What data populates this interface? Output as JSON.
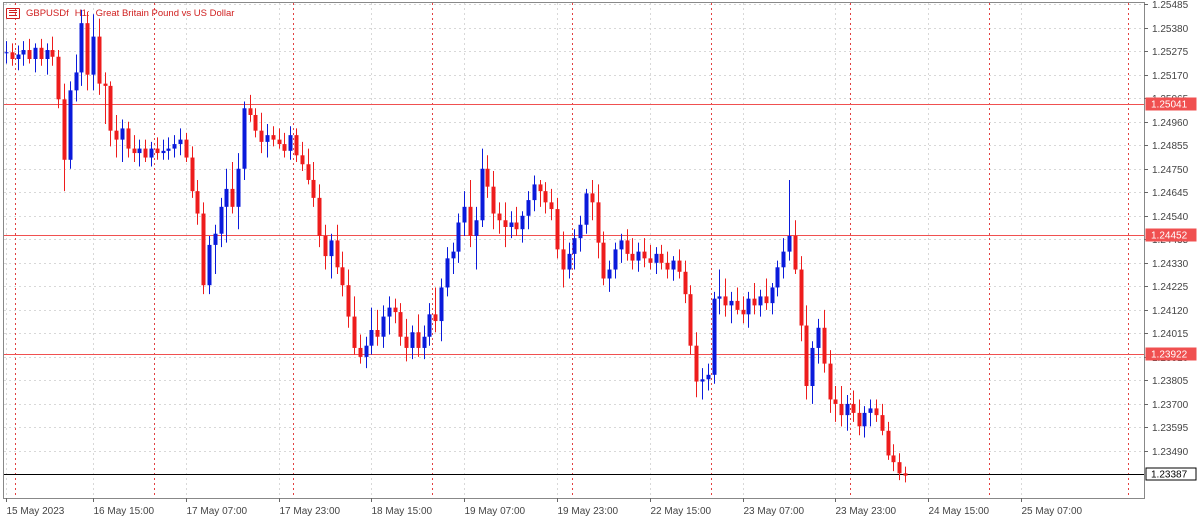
{
  "header": {
    "symbol": "GBPUSDf",
    "timeframe": "H1:",
    "description": "Great Britain Pound vs US Dollar",
    "icon": "chart-window-icon"
  },
  "colors": {
    "bull": "#0a1adb",
    "bear": "#ee1c1c",
    "grid": "#d8d8d8",
    "separator": "#e24040",
    "level_line": "#f05050",
    "current_line": "#000000",
    "text": "#444444"
  },
  "chart_data": {
    "type": "candlestick",
    "y_range": [
      1.2328,
      1.2549
    ],
    "y_ticks": [
      "1.25485",
      "1.25380",
      "1.25275",
      "1.25170",
      "1.25065",
      "1.24960",
      "1.24855",
      "1.24750",
      "1.24645",
      "1.24540",
      "1.24435",
      "1.24330",
      "1.24225",
      "1.24120",
      "1.24015",
      "1.23910",
      "1.23805",
      "1.23700",
      "1.23595",
      "1.23490"
    ],
    "x_labels": [
      {
        "label": "15 May 2023",
        "index": 0
      },
      {
        "label": "16 May 15:00",
        "index": 15
      },
      {
        "label": "17 May 07:00",
        "index": 31
      },
      {
        "label": "17 May 23:00",
        "index": 47
      },
      {
        "label": "18 May 15:00",
        "index": 63
      },
      {
        "label": "19 May 07:00",
        "index": 79
      },
      {
        "label": "19 May 23:00",
        "index": 95
      },
      {
        "label": "22 May 15:00",
        "index": 111
      },
      {
        "label": "23 May 07:00",
        "index": 127
      },
      {
        "label": "23 May 23:00",
        "index": 143
      },
      {
        "label": "24 May 15:00",
        "index": 159
      },
      {
        "label": "25 May 07:00",
        "index": 175
      }
    ],
    "day_separators": [
      2,
      26,
      50,
      74,
      98,
      122,
      146,
      170,
      194
    ],
    "horizontal_levels": [
      1.25041,
      1.24452,
      1.23922
    ],
    "level_labels": [
      "1.25041",
      "1.24452",
      "1.23922"
    ],
    "current_price": 1.23387,
    "current_price_label": "1.23387",
    "candles": [
      [
        1.2527,
        1.2532,
        1.2522,
        1.2527
      ],
      [
        1.2527,
        1.2531,
        1.2521,
        1.2524
      ],
      [
        1.2524,
        1.253,
        1.2519,
        1.2526
      ],
      [
        1.2526,
        1.2532,
        1.2521,
        1.2528
      ],
      [
        1.2528,
        1.2533,
        1.2522,
        1.2524
      ],
      [
        1.2524,
        1.2531,
        1.2518,
        1.2529
      ],
      [
        1.2529,
        1.2533,
        1.2521,
        1.2524
      ],
      [
        1.2524,
        1.2531,
        1.2517,
        1.2528
      ],
      [
        1.2528,
        1.2534,
        1.2521,
        1.2525
      ],
      [
        1.2525,
        1.2528,
        1.2502,
        1.2506
      ],
      [
        1.2506,
        1.2513,
        1.2465,
        1.2479
      ],
      [
        1.2479,
        1.2514,
        1.2475,
        1.251
      ],
      [
        1.251,
        1.2526,
        1.2505,
        1.2518
      ],
      [
        1.2518,
        1.2546,
        1.2512,
        1.254
      ],
      [
        1.254,
        1.2545,
        1.251,
        1.2517
      ],
      [
        1.2517,
        1.2544,
        1.251,
        1.2534
      ],
      [
        1.2534,
        1.2542,
        1.2508,
        1.2513
      ],
      [
        1.2513,
        1.2518,
        1.2495,
        1.2512
      ],
      [
        1.2512,
        1.2514,
        1.2485,
        1.2492
      ],
      [
        1.2492,
        1.2499,
        1.248,
        1.2488
      ],
      [
        1.2488,
        1.2497,
        1.2478,
        1.2493
      ],
      [
        1.2493,
        1.2496,
        1.248,
        1.2484
      ],
      [
        1.2484,
        1.249,
        1.2478,
        1.2482
      ],
      [
        1.2482,
        1.2488,
        1.2476,
        1.2484
      ],
      [
        1.2484,
        1.2488,
        1.2478,
        1.248
      ],
      [
        1.248,
        1.2487,
        1.2476,
        1.2484
      ],
      [
        1.2484,
        1.2489,
        1.2479,
        1.2482
      ],
      [
        1.2482,
        1.2488,
        1.2479,
        1.2483
      ],
      [
        1.2483,
        1.2489,
        1.2479,
        1.2484
      ],
      [
        1.2484,
        1.249,
        1.248,
        1.2486
      ],
      [
        1.2486,
        1.2493,
        1.2481,
        1.2488
      ],
      [
        1.2488,
        1.2491,
        1.2478,
        1.248
      ],
      [
        1.248,
        1.2485,
        1.2462,
        1.2465
      ],
      [
        1.2465,
        1.247,
        1.245,
        1.2455
      ],
      [
        1.2455,
        1.246,
        1.2419,
        1.2423
      ],
      [
        1.2423,
        1.2445,
        1.2419,
        1.2441
      ],
      [
        1.2441,
        1.245,
        1.2428,
        1.2446
      ],
      [
        1.2446,
        1.2462,
        1.244,
        1.2458
      ],
      [
        1.2458,
        1.2475,
        1.2442,
        1.2466
      ],
      [
        1.2466,
        1.2478,
        1.2455,
        1.2458
      ],
      [
        1.2458,
        1.2482,
        1.2448,
        1.2475
      ],
      [
        1.2475,
        1.2505,
        1.247,
        1.2502
      ],
      [
        1.2502,
        1.2508,
        1.2496,
        1.2499
      ],
      [
        1.2499,
        1.2502,
        1.2489,
        1.2492
      ],
      [
        1.2492,
        1.25,
        1.2482,
        1.2487
      ],
      [
        1.2487,
        1.2495,
        1.248,
        1.249
      ],
      [
        1.249,
        1.2494,
        1.2485,
        1.2488
      ],
      [
        1.2488,
        1.2493,
        1.2484,
        1.2486
      ],
      [
        1.2486,
        1.2491,
        1.248,
        1.2483
      ],
      [
        1.2483,
        1.2494,
        1.2479,
        1.249
      ],
      [
        1.249,
        1.2493,
        1.2478,
        1.2481
      ],
      [
        1.2481,
        1.2487,
        1.2474,
        1.2477
      ],
      [
        1.2477,
        1.2484,
        1.2468,
        1.247
      ],
      [
        1.247,
        1.2478,
        1.2458,
        1.2462
      ],
      [
        1.2462,
        1.2468,
        1.244,
        1.2445
      ],
      [
        1.2445,
        1.245,
        1.243,
        1.2436
      ],
      [
        1.2436,
        1.2446,
        1.2426,
        1.2443
      ],
      [
        1.2443,
        1.245,
        1.2428,
        1.2431
      ],
      [
        1.2431,
        1.2438,
        1.2418,
        1.2423
      ],
      [
        1.2423,
        1.243,
        1.2404,
        1.2409
      ],
      [
        1.2409,
        1.2418,
        1.2392,
        1.2395
      ],
      [
        1.2395,
        1.2401,
        1.2388,
        1.2391
      ],
      [
        1.2391,
        1.24,
        1.2386,
        1.2396
      ],
      [
        1.2396,
        1.2413,
        1.2392,
        1.2403
      ],
      [
        1.2403,
        1.2412,
        1.2396,
        1.24
      ],
      [
        1.24,
        1.2414,
        1.2395,
        1.2409
      ],
      [
        1.2409,
        1.2418,
        1.2401,
        1.2413
      ],
      [
        1.2413,
        1.2417,
        1.2406,
        1.2411
      ],
      [
        1.2411,
        1.2415,
        1.2396,
        1.24
      ],
      [
        1.24,
        1.2408,
        1.2389,
        1.2395
      ],
      [
        1.2395,
        1.2405,
        1.239,
        1.2402
      ],
      [
        1.2402,
        1.241,
        1.2391,
        1.2395
      ],
      [
        1.2395,
        1.2405,
        1.239,
        1.24
      ],
      [
        1.24,
        1.2415,
        1.2396,
        1.241
      ],
      [
        1.241,
        1.2422,
        1.2402,
        1.2407
      ],
      [
        1.2407,
        1.2426,
        1.2398,
        1.2422
      ],
      [
        1.2422,
        1.244,
        1.2418,
        1.2435
      ],
      [
        1.2435,
        1.2442,
        1.2428,
        1.2438
      ],
      [
        1.2438,
        1.2455,
        1.2433,
        1.2451
      ],
      [
        1.2451,
        1.2465,
        1.2445,
        1.2458
      ],
      [
        1.2458,
        1.247,
        1.244,
        1.2445
      ],
      [
        1.2445,
        1.2458,
        1.243,
        1.2452
      ],
      [
        1.2452,
        1.2484,
        1.2449,
        1.2475
      ],
      [
        1.2475,
        1.2481,
        1.2462,
        1.2467
      ],
      [
        1.2467,
        1.2474,
        1.2448,
        1.2455
      ],
      [
        1.2455,
        1.246,
        1.2446,
        1.2452
      ],
      [
        1.2452,
        1.246,
        1.244,
        1.2449
      ],
      [
        1.2449,
        1.2456,
        1.2444,
        1.2451
      ],
      [
        1.2451,
        1.2458,
        1.2445,
        1.2448
      ],
      [
        1.2448,
        1.2456,
        1.2442,
        1.2454
      ],
      [
        1.2454,
        1.2465,
        1.2448,
        1.2461
      ],
      [
        1.2461,
        1.2472,
        1.2456,
        1.2468
      ],
      [
        1.2468,
        1.247,
        1.2458,
        1.2465
      ],
      [
        1.2465,
        1.2469,
        1.2455,
        1.246
      ],
      [
        1.246,
        1.2466,
        1.2452,
        1.2457
      ],
      [
        1.2457,
        1.2462,
        1.2435,
        1.2439
      ],
      [
        1.2439,
        1.2447,
        1.2422,
        1.243
      ],
      [
        1.243,
        1.2442,
        1.2426,
        1.2437
      ],
      [
        1.2437,
        1.2448,
        1.243,
        1.2444
      ],
      [
        1.2444,
        1.2454,
        1.2438,
        1.245
      ],
      [
        1.245,
        1.2466,
        1.2446,
        1.2464
      ],
      [
        1.2464,
        1.247,
        1.2452,
        1.246
      ],
      [
        1.246,
        1.2468,
        1.2435,
        1.2442
      ],
      [
        1.2442,
        1.2447,
        1.2423,
        1.2426
      ],
      [
        1.2426,
        1.2434,
        1.242,
        1.243
      ],
      [
        1.243,
        1.2442,
        1.2426,
        1.2439
      ],
      [
        1.2439,
        1.2446,
        1.2433,
        1.2443
      ],
      [
        1.2443,
        1.2448,
        1.2434,
        1.2437
      ],
      [
        1.2437,
        1.2444,
        1.243,
        1.2434
      ],
      [
        1.2434,
        1.2442,
        1.2429,
        1.2438
      ],
      [
        1.2438,
        1.2444,
        1.2431,
        1.2435
      ],
      [
        1.2435,
        1.2441,
        1.243,
        1.2433
      ],
      [
        1.2433,
        1.244,
        1.2428,
        1.2437
      ],
      [
        1.2437,
        1.2441,
        1.243,
        1.2433
      ],
      [
        1.2433,
        1.2438,
        1.2426,
        1.243
      ],
      [
        1.243,
        1.2436,
        1.2425,
        1.2434
      ],
      [
        1.2434,
        1.2439,
        1.2426,
        1.2429
      ],
      [
        1.2429,
        1.2434,
        1.2415,
        1.2419
      ],
      [
        1.2419,
        1.2423,
        1.2392,
        1.2396
      ],
      [
        1.2396,
        1.2402,
        1.2373,
        1.238
      ],
      [
        1.238,
        1.2386,
        1.2372,
        1.2381
      ],
      [
        1.2381,
        1.2388,
        1.2376,
        1.2383
      ],
      [
        1.2383,
        1.242,
        1.2379,
        1.2417
      ],
      [
        1.2417,
        1.243,
        1.241,
        1.2418
      ],
      [
        1.2418,
        1.2426,
        1.2409,
        1.2414
      ],
      [
        1.2414,
        1.242,
        1.2406,
        1.2416
      ],
      [
        1.2416,
        1.2422,
        1.241,
        1.2412
      ],
      [
        1.2412,
        1.2418,
        1.2406,
        1.241
      ],
      [
        1.241,
        1.242,
        1.2404,
        1.2417
      ],
      [
        1.2417,
        1.2424,
        1.241,
        1.2414
      ],
      [
        1.2414,
        1.2421,
        1.2409,
        1.2418
      ],
      [
        1.2418,
        1.2426,
        1.2412,
        1.2415
      ],
      [
        1.2415,
        1.2424,
        1.241,
        1.2422
      ],
      [
        1.2422,
        1.2434,
        1.2418,
        1.2431
      ],
      [
        1.2431,
        1.2444,
        1.2426,
        1.2438
      ],
      [
        1.2438,
        1.247,
        1.2434,
        1.2445
      ],
      [
        1.2445,
        1.2452,
        1.2428,
        1.243
      ],
      [
        1.243,
        1.2436,
        1.2398,
        1.2405
      ],
      [
        1.2405,
        1.2414,
        1.2372,
        1.2378
      ],
      [
        1.2378,
        1.2398,
        1.237,
        1.2395
      ],
      [
        1.2395,
        1.2408,
        1.2388,
        1.2404
      ],
      [
        1.2404,
        1.2412,
        1.2384,
        1.2388
      ],
      [
        1.2388,
        1.2394,
        1.2366,
        1.2372
      ],
      [
        1.2372,
        1.2378,
        1.2362,
        1.237
      ],
      [
        1.237,
        1.2378,
        1.236,
        1.2365
      ],
      [
        1.2365,
        1.2374,
        1.2358,
        1.237
      ],
      [
        1.237,
        1.2376,
        1.2362,
        1.2366
      ],
      [
        1.2366,
        1.2372,
        1.2356,
        1.236
      ],
      [
        1.236,
        1.2369,
        1.2355,
        1.2366
      ],
      [
        1.2366,
        1.2372,
        1.236,
        1.2368
      ],
      [
        1.2368,
        1.2372,
        1.2362,
        1.2365
      ],
      [
        1.2365,
        1.237,
        1.2356,
        1.2358
      ],
      [
        1.2358,
        1.2362,
        1.2345,
        1.2347
      ],
      [
        1.2347,
        1.2352,
        1.234,
        1.2344
      ],
      [
        1.2344,
        1.2348,
        1.2336,
        1.2339
      ],
      [
        1.2339,
        1.2342,
        1.2335,
        1.2338
      ]
    ]
  }
}
